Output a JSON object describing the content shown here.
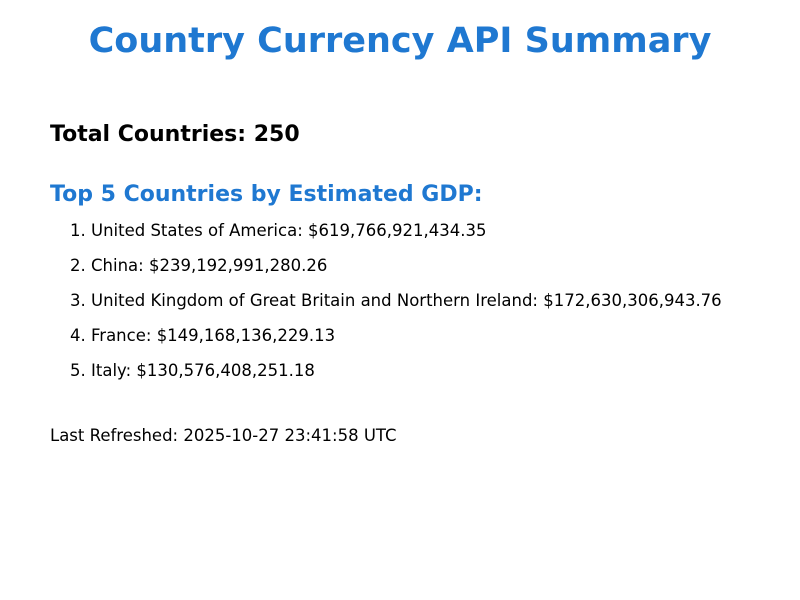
{
  "title": "Country Currency API Summary",
  "total": {
    "label": "Total Countries: 250",
    "value": 250
  },
  "top_gdp": {
    "heading": "Top 5 Countries by Estimated GDP:",
    "items": [
      {
        "rank": "1.",
        "country": "United States of America",
        "gdp": "$619,766,921,434.35"
      },
      {
        "rank": "2.",
        "country": "China",
        "gdp": "$239,192,991,280.26"
      },
      {
        "rank": "3.",
        "country": "United Kingdom of Great Britain and Northern Ireland",
        "gdp": "$172,630,306,943.76"
      },
      {
        "rank": "4.",
        "country": "France",
        "gdp": "$149,168,136,229.13"
      },
      {
        "rank": "5.",
        "country": "Italy",
        "gdp": "$130,576,408,251.18"
      }
    ]
  },
  "last_refreshed": "Last Refreshed: 2025-10-27 23:41:58 UTC",
  "colors": {
    "accent": "#1f78d1",
    "text": "#000000",
    "background": "#ffffff"
  }
}
